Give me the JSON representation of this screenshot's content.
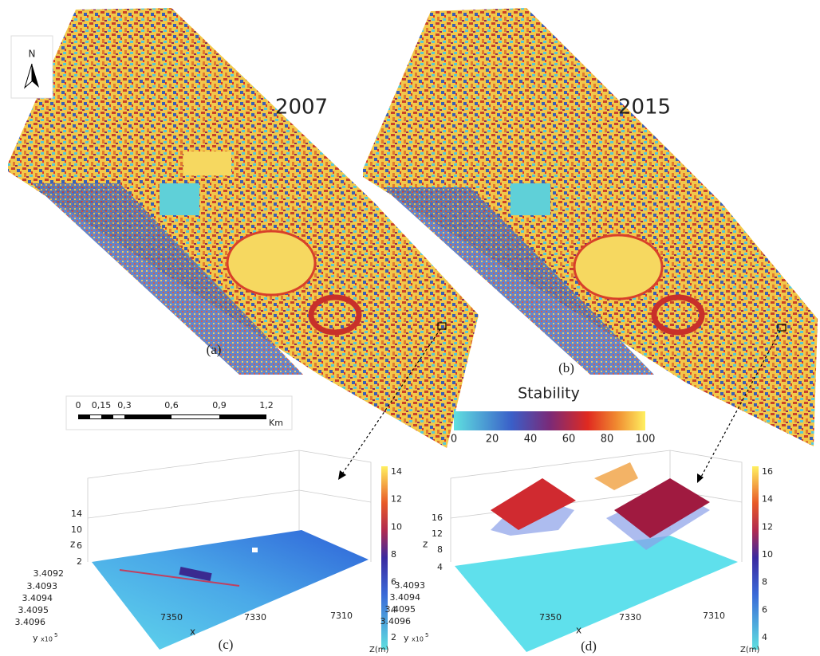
{
  "figure": {
    "north": "N",
    "maps": [
      {
        "year": "2007",
        "label": "(a)"
      },
      {
        "year": "2015",
        "label": "(b)"
      }
    ],
    "scale_bar": {
      "ticks": [
        "0",
        "0,15",
        "0,3",
        "0,6",
        "0,9",
        "1,2"
      ],
      "unit": "Km"
    },
    "stability_legend": {
      "title": "Stability",
      "ticks": [
        0,
        20,
        40,
        60,
        80,
        100
      ]
    },
    "plots": [
      {
        "label": "(c)",
        "z_label": "z",
        "z_ticks": [
          14,
          10,
          6,
          2
        ],
        "y_label": "y",
        "y_multiplier": "x10",
        "y_power": "5",
        "y_ticks": [
          3.4092,
          3.4093,
          3.4094,
          3.4095,
          3.4096
        ],
        "x_label": "x",
        "x_ticks": [
          7350,
          7330,
          7310
        ],
        "colorbar_ticks": [
          14,
          12,
          10,
          8,
          6,
          4,
          2
        ],
        "colorbar_label": "Z(m)"
      },
      {
        "label": "(d)",
        "z_label": "z",
        "z_ticks": [
          16,
          12,
          8,
          4
        ],
        "y_label": "y",
        "y_multiplier": "x10",
        "y_power": "5",
        "y_ticks": [
          3.4093,
          3.4094,
          3.4095,
          3.4096
        ],
        "x_label": "x",
        "x_ticks": [
          7350,
          7330,
          7310
        ],
        "colorbar_ticks": [
          16,
          14,
          12,
          10,
          8,
          6,
          4
        ],
        "colorbar_label": "Z(m)"
      }
    ]
  }
}
